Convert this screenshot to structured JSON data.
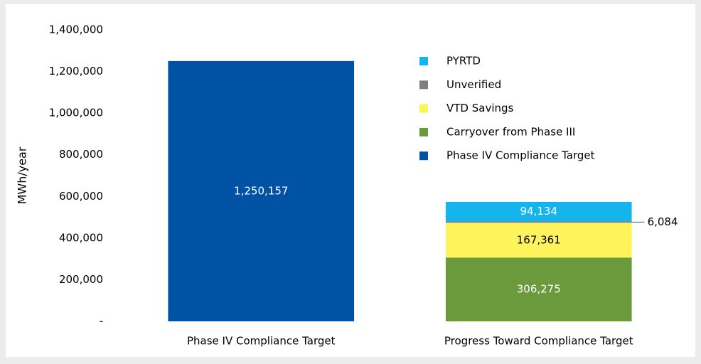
{
  "chart_data": {
    "type": "stacked_bar",
    "y_label": "MWh/year",
    "categories": [
      "Phase IV Compliance Target",
      "Progress Toward Compliance Target"
    ],
    "series": [
      {
        "name": "Phase IV Compliance Target",
        "color": "#0052a5",
        "values": [
          1250157,
          null
        ],
        "value_labels": [
          "1,250,157",
          null
        ]
      },
      {
        "name": "Carryover from Phase III",
        "color": "#6a9a3c",
        "values": [
          null,
          306275
        ],
        "value_labels": [
          null,
          "306,275"
        ]
      },
      {
        "name": "VTD Savings",
        "color": "#fff35c",
        "values": [
          null,
          167361
        ],
        "value_labels": [
          null,
          "167,361"
        ]
      },
      {
        "name": "Unverified",
        "color": "#7f7f7f",
        "values": [
          null,
          6084
        ],
        "value_labels": [
          null,
          "6,084"
        ]
      },
      {
        "name": "PYRTD",
        "color": "#16b4ec",
        "values": [
          null,
          94134
        ],
        "value_labels": [
          null,
          "94,134"
        ]
      }
    ],
    "ylim": [
      0,
      1400000
    ],
    "yticks": [
      {
        "value": 0,
        "label": "-"
      },
      {
        "value": 200000,
        "label": "200,000"
      },
      {
        "value": 400000,
        "label": "400,000"
      },
      {
        "value": 600000,
        "label": "600,000"
      },
      {
        "value": 800000,
        "label": "800,000"
      },
      {
        "value": 1000000,
        "label": "1,000,000"
      },
      {
        "value": 1200000,
        "label": "1,200,000"
      },
      {
        "value": 1400000,
        "label": "1,400,000"
      }
    ],
    "grid": false,
    "legend": "top-right"
  }
}
